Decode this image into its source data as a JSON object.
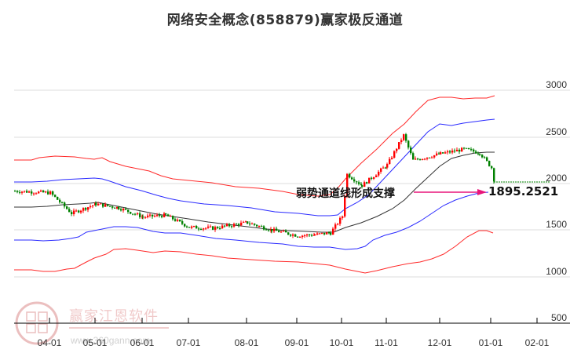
{
  "title": "网络安全概念(858879)赢家极反通道",
  "annotation": {
    "text": "弱势通道线形成支撑",
    "value": "1895.2521",
    "arrow_color": "#e8157a"
  },
  "watermark": {
    "brand": "赢家江恩软件",
    "url": "www.360gann.com",
    "logo_chars": "江恩赢家"
  },
  "colors": {
    "up_candle": "#ff0000",
    "down_candle": "#008000",
    "outer_band": "#ff2a2a",
    "inner_band": "#2a2aff",
    "middle_line": "#333333",
    "grid": "#dddddd",
    "projection": "#008000"
  },
  "chart_data": {
    "type": "candlestick",
    "title": "网络安全概念(858879)赢家极反通道",
    "xlabel": "",
    "ylabel": "",
    "ylim": [
      500,
      3100
    ],
    "y_ticks": [
      3000,
      2500,
      2000,
      1500,
      1000,
      500
    ],
    "x_ticks": [
      "04-01",
      "05-01",
      "06-01",
      "07-01",
      "08-01",
      "09-01",
      "10-01",
      "11-01",
      "12-01",
      "01-01",
      "02-01"
    ],
    "grid": true,
    "legend": null,
    "annotations": [
      {
        "text": "弱势通道线形成支撑",
        "points_to": 1895.2521,
        "x": "01-01"
      }
    ],
    "series": [
      {
        "name": "price_close_approx",
        "x": [
          "03-15",
          "04-01",
          "04-15",
          "05-01",
          "05-15",
          "06-01",
          "06-15",
          "07-01",
          "07-15",
          "08-01",
          "08-15",
          "09-01",
          "09-15",
          "09-25",
          "10-01",
          "10-08",
          "10-15",
          "11-01",
          "11-12",
          "11-20",
          "12-01",
          "12-15",
          "12-25",
          "01-01",
          "01-03"
        ],
        "values": [
          1920,
          1900,
          1680,
          1780,
          1740,
          1640,
          1660,
          1530,
          1520,
          1580,
          1500,
          1440,
          1450,
          1470,
          1650,
          2100,
          1980,
          2200,
          2520,
          2250,
          2320,
          2370,
          2330,
          2170,
          2000
        ]
      },
      {
        "name": "outer_upper_band",
        "x": [
          "03-15",
          "04-01",
          "05-01",
          "06-01",
          "07-01",
          "08-01",
          "09-01",
          "09-25",
          "10-15",
          "11-01",
          "12-01",
          "12-15",
          "01-01"
        ],
        "values": [
          2200,
          2270,
          2230,
          2060,
          1960,
          1880,
          1770,
          1730,
          1980,
          2400,
          2920,
          2890,
          2930
        ]
      },
      {
        "name": "inner_upper_band",
        "x": [
          "03-15",
          "04-01",
          "05-01",
          "06-01",
          "07-01",
          "08-01",
          "09-01",
          "09-25",
          "10-15",
          "11-01",
          "12-01",
          "12-15",
          "01-01"
        ],
        "values": [
          2000,
          2020,
          2030,
          1850,
          1760,
          1700,
          1640,
          1620,
          1780,
          2010,
          2500,
          2590,
          2640
        ]
      },
      {
        "name": "middle_line",
        "x": [
          "03-15",
          "04-01",
          "05-01",
          "06-01",
          "07-01",
          "08-01",
          "09-01",
          "09-25",
          "10-15",
          "11-01",
          "12-01",
          "12-15",
          "01-01"
        ],
        "values": [
          1740,
          1750,
          1800,
          1720,
          1630,
          1540,
          1490,
          1460,
          1560,
          1720,
          2150,
          2280,
          2320
        ]
      },
      {
        "name": "inner_lower_band",
        "x": [
          "03-15",
          "04-01",
          "05-01",
          "06-01",
          "07-01",
          "08-01",
          "09-01",
          "09-25",
          "10-15",
          "11-01",
          "12-01",
          "12-15",
          "01-01"
        ],
        "values": [
          1390,
          1380,
          1460,
          1520,
          1490,
          1440,
          1400,
          1370,
          1350,
          1430,
          1630,
          1760,
          1895.2521
        ]
      },
      {
        "name": "outer_lower_band",
        "x": [
          "03-15",
          "04-01",
          "05-01",
          "06-01",
          "07-01",
          "08-01",
          "09-01",
          "09-25",
          "10-15",
          "11-01",
          "12-01",
          "12-15",
          "01-01"
        ],
        "values": [
          1050,
          1060,
          1140,
          1480,
          1470,
          1450,
          1400,
          1320,
          1150,
          1200,
          1290,
          1480,
          1490
        ]
      }
    ]
  }
}
